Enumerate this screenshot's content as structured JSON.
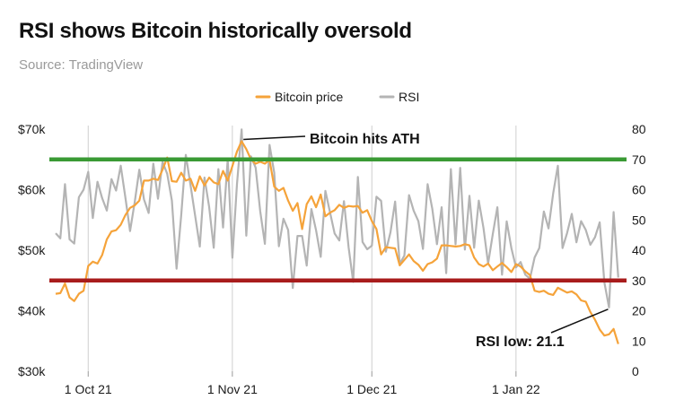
{
  "title": "RSI shows Bitcoin historically oversold",
  "subtitle": "Source: TradingView",
  "colors": {
    "price": "#f5a33a",
    "rsi": "#b4b4b4",
    "ath_line": "#3a9a34",
    "oversold_line": "#a81c1c",
    "grid": "#cfcfcf",
    "text": "#1a1a1a"
  },
  "chart_data": {
    "type": "line",
    "title": "RSI shows Bitcoin historically oversold",
    "x_axis": {
      "range": [
        0,
        122
      ],
      "ticks": [
        {
          "x": 7,
          "label": "1 Oct 21"
        },
        {
          "x": 38,
          "label": "1 Nov 21"
        },
        {
          "x": 68,
          "label": "1 Dec 21"
        },
        {
          "x": 99,
          "label": "1 Jan 22"
        }
      ]
    },
    "y_left": {
      "ylim": [
        30000,
        70000
      ],
      "ticks": [
        30000,
        40000,
        50000,
        60000,
        70000
      ],
      "tick_labels": [
        "$30k",
        "$40k",
        "$50k",
        "$60k",
        "$70k"
      ]
    },
    "y_right": {
      "ylim": [
        0,
        80
      ],
      "ticks": [
        0,
        10,
        20,
        30,
        40,
        50,
        60,
        70,
        80
      ],
      "tick_labels": [
        "0",
        "10",
        "20",
        "30",
        "40",
        "50",
        "60",
        "70",
        "80"
      ]
    },
    "series": [
      {
        "name": "Bitcoin price",
        "axis": "left",
        "values": [
          42800,
          42900,
          44500,
          42200,
          41600,
          42800,
          43300,
          47400,
          48100,
          47800,
          49200,
          51800,
          53100,
          53300,
          54200,
          55800,
          57000,
          57400,
          58200,
          61500,
          61500,
          61800,
          61600,
          63300,
          65300,
          61400,
          61300,
          62800,
          61500,
          61800,
          59800,
          62200,
          60700,
          62000,
          61200,
          60900,
          63100,
          61500,
          63900,
          66300,
          68000,
          66700,
          65000,
          64300,
          64600,
          64300,
          64900,
          60500,
          59800,
          60300,
          58200,
          56500,
          57800,
          53500,
          57600,
          58900,
          57100,
          59200,
          55600,
          56200,
          56600,
          57500,
          57000,
          57300,
          57200,
          57300,
          56200,
          56600,
          54800,
          53500,
          49300,
          50500,
          50400,
          50300,
          47500,
          48400,
          49300,
          48200,
          47600,
          46600,
          47700,
          48000,
          48600,
          50800,
          50800,
          50700,
          50600,
          50700,
          51000,
          50800,
          48800,
          47700,
          47300,
          47800,
          46700,
          47300,
          47900,
          47200,
          46400,
          47700,
          47300,
          46500,
          45900,
          43300,
          43100,
          43300,
          42800,
          42600,
          43800,
          43400,
          43000,
          43200,
          42700,
          41700,
          41500,
          39800,
          38500,
          36900,
          35900,
          36100,
          37000,
          34500
        ]
      },
      {
        "name": "RSI",
        "axis": "right",
        "values": [
          45.6,
          43.9,
          61.8,
          43.6,
          42.2,
          57.5,
          60.0,
          65.9,
          50.6,
          62.6,
          57.2,
          53.1,
          63.5,
          59.7,
          67.9,
          57.4,
          46.3,
          55.9,
          66.6,
          56.8,
          52.3,
          68.6,
          57.0,
          69.2,
          65.2,
          56.4,
          33.9,
          51.6,
          71.5,
          61.6,
          51.4,
          41.2,
          64.0,
          54.3,
          40.8,
          66.8,
          47.5,
          70.1,
          37.5,
          61.8,
          79.9,
          44.8,
          71.0,
          67.3,
          52.9,
          42.1,
          74.8,
          65.6,
          41.3,
          50.4,
          46.7,
          27.5,
          44.7,
          44.7,
          34.9,
          53.6,
          46.6,
          37.8,
          59.6,
          52.6,
          45.5,
          43.2,
          56.2,
          40.9,
          29.5,
          64.2,
          42.7,
          40.3,
          41.5,
          57.7,
          56.3,
          39.5,
          45.9,
          56.1,
          35.5,
          38.2,
          58.2,
          53.0,
          49.6,
          40.4,
          61.8,
          53.7,
          42.0,
          54.2,
          32.4,
          66.8,
          42.0,
          67.2,
          40.2,
          58.0,
          40.8,
          56.4,
          47.4,
          35.6,
          45.3,
          54.2,
          31.9,
          49.5,
          40.7,
          34.3,
          36.1,
          31.9,
          30.6,
          37.6,
          40.7,
          52.8,
          47.2,
          58.8,
          67.9,
          40.7,
          45.7,
          52.0,
          42.6,
          49.6,
          46.7,
          41.8,
          44.3,
          49.2,
          29.4,
          21.1,
          52.6,
          31.0
        ]
      }
    ],
    "reference_lines": [
      {
        "name": "ath-line",
        "axis": "right",
        "value": 70
      },
      {
        "name": "oversold-line",
        "axis": "right",
        "value": 30
      }
    ],
    "annotations": [
      {
        "text": "Bitcoin hits ATH",
        "series": "Bitcoin price",
        "index": 40
      },
      {
        "text": "RSI low: 21.1",
        "series": "RSI",
        "index": 119
      }
    ]
  }
}
